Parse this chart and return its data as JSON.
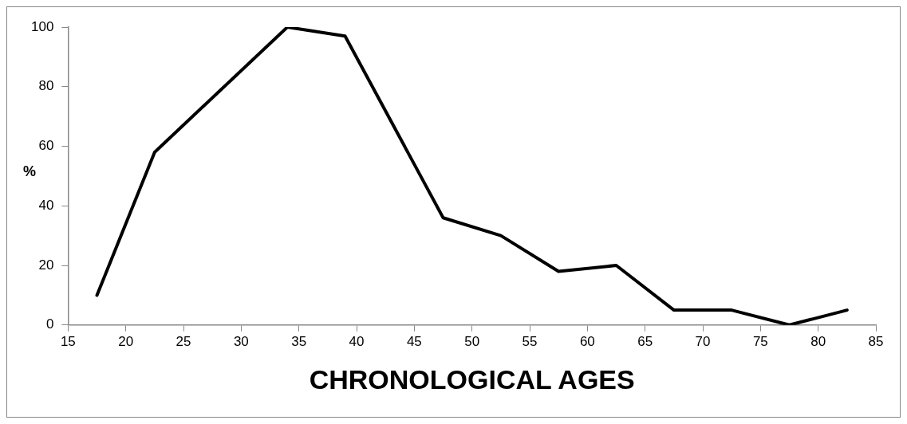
{
  "chart_data": {
    "type": "line",
    "xlabel": "CHRONOLOGICAL AGES",
    "ylabel": "%",
    "x": [
      17.5,
      22.5,
      34,
      39,
      47.5,
      52.5,
      57.5,
      62.5,
      67.5,
      72.5,
      77.5,
      82.5
    ],
    "series": [
      {
        "color": "#000000",
        "values": [
          10,
          58,
          100,
          97,
          36,
          30,
          18,
          20,
          5,
          5,
          0,
          5
        ]
      }
    ],
    "xlim": [
      15,
      85
    ],
    "xticks": [
      15,
      20,
      25,
      30,
      35,
      40,
      45,
      50,
      55,
      60,
      65,
      70,
      75,
      80,
      85
    ],
    "ylim": [
      0,
      100
    ],
    "yticks": [
      0,
      20,
      40,
      60,
      80,
      100
    ],
    "grid": false,
    "legend": false,
    "marker": "none",
    "line_style": "solid"
  }
}
